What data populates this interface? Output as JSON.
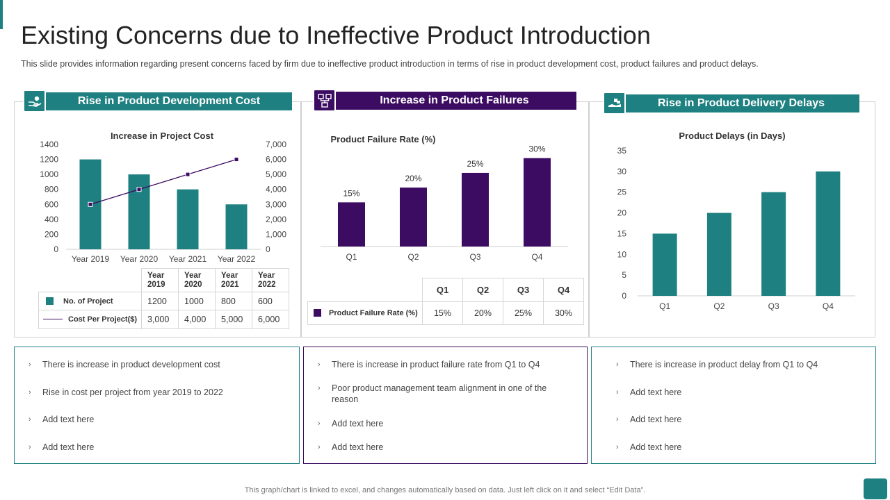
{
  "page": {
    "title": "Existing Concerns due to Ineffective Product Introduction",
    "subtitle": "This slide provides information regarding present concerns faced by firm due to ineffective product introduction in terms of rise in product development cost, product failures and product delays.",
    "footer": "This graph/chart is linked to excel, and changes automatically based on data. Just left click on it and select “Edit Data”."
  },
  "colors": {
    "teal": "#1e8080",
    "purple": "#3c0b62"
  },
  "panels": [
    {
      "heading": "Rise in Product Development Cost",
      "icon": "hand-money-icon",
      "table": {
        "headers": [
          [
            "Year",
            "2019"
          ],
          [
            "Year",
            "2020"
          ],
          [
            "Year",
            "2021"
          ],
          [
            "Year",
            "2022"
          ]
        ],
        "rows": [
          {
            "label": "No. of Project",
            "values": [
              "1200",
              "1000",
              "800",
              "600"
            ]
          },
          {
            "label": "Cost Per Project($)",
            "values": [
              "3,000",
              "4,000",
              "5,000",
              "6,000"
            ]
          }
        ]
      },
      "bullets": [
        "There is increase in product development cost",
        "Rise in cost per project from year 2019 to 2022",
        "Add text here",
        "Add text here"
      ]
    },
    {
      "heading": "Increase in Product Failures",
      "icon": "flowchart-icon",
      "table": {
        "headers": [
          "Q1",
          "Q2",
          "Q3",
          "Q4"
        ],
        "rows": [
          {
            "label": "Product Failure Rate (%)",
            "values": [
              "15%",
              "20%",
              "25%",
              "30%"
            ]
          }
        ]
      },
      "bullets": [
        "There is increase in product failure rate from Q1 to Q4",
        "Poor product management team alignment in one of the reason",
        "Add text here",
        "Add text here"
      ]
    },
    {
      "heading": "Rise in Product Delivery Delays",
      "icon": "delivery-truck-icon",
      "bullets": [
        "There is increase in product delay from Q1 to Q4",
        "Add text here",
        "Add text here",
        "Add text here"
      ]
    }
  ],
  "chart_data": [
    {
      "type": "bar",
      "title": "Increase in Project Cost",
      "categories": [
        "Year 2019",
        "Year 2020",
        "Year 2021",
        "Year 2022"
      ],
      "series": [
        {
          "name": "No. of Project",
          "type": "bar",
          "axis": "left",
          "values": [
            1200,
            1000,
            800,
            600
          ],
          "color": "#1e8080"
        },
        {
          "name": "Cost Per Project($)",
          "type": "line",
          "axis": "right",
          "values": [
            3000,
            4000,
            5000,
            6000
          ],
          "color": "#3c0b62"
        }
      ],
      "ylim": [
        0,
        1400
      ],
      "yticks": [
        "0",
        "200",
        "400",
        "600",
        "800",
        "1000",
        "1200",
        "1400"
      ],
      "y2lim": [
        0,
        7000
      ],
      "y2ticks": [
        "0",
        "1,000",
        "2,000",
        "3,000",
        "4,000",
        "5,000",
        "6,000",
        "7,000"
      ]
    },
    {
      "type": "bar",
      "title": "Product Failure Rate (%)",
      "categories": [
        "Q1",
        "Q2",
        "Q3",
        "Q4"
      ],
      "values": [
        15,
        20,
        25,
        30
      ],
      "labels": [
        "15%",
        "20%",
        "25%",
        "30%"
      ],
      "color": "#3c0b62",
      "ylim": [
        0,
        33
      ]
    },
    {
      "type": "bar",
      "title": "Product Delays (in Days)",
      "categories": [
        "Q1",
        "Q2",
        "Q3",
        "Q4"
      ],
      "values": [
        15,
        20,
        25,
        30
      ],
      "color": "#1e8080",
      "ylim": [
        0,
        35
      ],
      "yticks": [
        "0",
        "5",
        "10",
        "15",
        "20",
        "25",
        "30",
        "35"
      ]
    }
  ]
}
